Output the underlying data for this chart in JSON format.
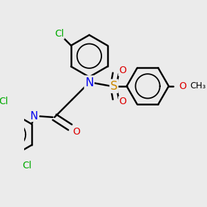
{
  "background_color": "#ebebeb",
  "bond_color": "#000000",
  "bond_width": 1.8,
  "atom_colors": {
    "C": "#000000",
    "H": "#555555",
    "N": "#0000ee",
    "O": "#dd0000",
    "S": "#cc8800",
    "Cl": "#00aa00"
  },
  "font_size": 10,
  "figsize": [
    3.0,
    3.0
  ],
  "dpi": 100
}
